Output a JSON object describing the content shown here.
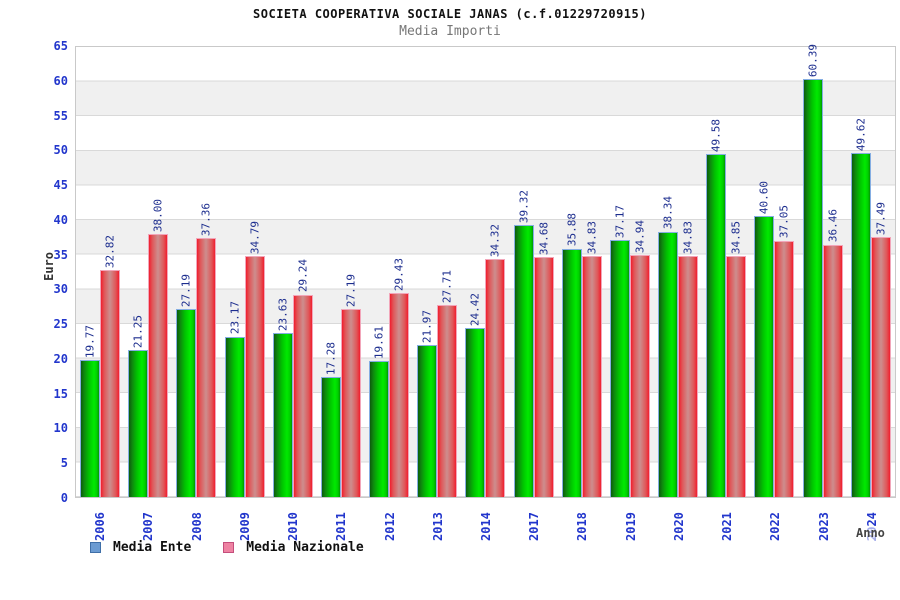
{
  "chart_data": {
    "type": "bar",
    "title": "SOCIETA COOPERATIVA SOCIALE JANAS (c.f.01229720915)",
    "subtitle": "Media Importi",
    "xlabel": "Anno",
    "ylabel": "Euro",
    "ylim": [
      0,
      65
    ],
    "ytick_step": 5,
    "grid": "horizontal-alternating-bands",
    "legend_position": "bottom-left",
    "categories": [
      "2006",
      "2007",
      "2008",
      "2009",
      "2010",
      "2011",
      "2012",
      "2013",
      "2014",
      "2017",
      "2018",
      "2019",
      "2020",
      "2021",
      "2022",
      "2023",
      "2024"
    ],
    "series": [
      {
        "name": "Media Ente",
        "legend_color": "#6b9bd2",
        "bar_color": "green",
        "values": [
          19.77,
          21.25,
          27.19,
          23.17,
          23.63,
          17.28,
          19.61,
          21.97,
          24.42,
          39.32,
          35.88,
          37.17,
          38.34,
          49.58,
          40.6,
          60.39,
          49.62
        ]
      },
      {
        "name": "Media Nazionale",
        "legend_color": "#ee82a2",
        "bar_color": "red",
        "values": [
          32.82,
          38.0,
          37.36,
          34.79,
          29.24,
          27.19,
          29.43,
          27.71,
          34.32,
          34.68,
          34.83,
          34.94,
          34.83,
          34.85,
          37.05,
          36.46,
          37.49
        ]
      }
    ],
    "colors": {
      "axis_tick_label": "#2236cc",
      "value_label": "#1c2d8e",
      "band_gray": "#f0f0f0",
      "gridline": "#d9d9d9",
      "green_bright": "#00ea00",
      "green_dark": "#0d5c0d",
      "red_edge": "#f01e2e",
      "red_center": "#cd8e8e"
    }
  }
}
